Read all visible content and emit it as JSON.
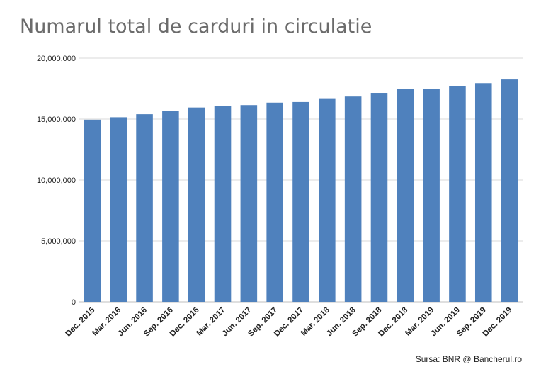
{
  "chart_data": {
    "type": "bar",
    "title": "Numarul total de carduri in circulatie",
    "source": "Sursa: BNR @  Bancherul.ro",
    "xlabel": "",
    "ylabel": "",
    "ylim": [
      0,
      20000000
    ],
    "yticks": [
      0,
      5000000,
      10000000,
      15000000,
      20000000
    ],
    "ytick_labels": [
      "0",
      "5,000,000",
      "10,000,000",
      "15,000,000",
      "20,000,000"
    ],
    "grid": true,
    "legend": "none",
    "bar_color": "#4f81bd",
    "categories": [
      "Dec. 2015",
      "Mar. 2016",
      "Jun. 2016",
      "Sep. 2016",
      "Dec. 2016",
      "Mar. 2017",
      "Jun. 2017",
      "Sep. 2017",
      "Dec. 2017",
      "Mar. 2018",
      "Jun. 2018",
      "Sep. 2018",
      "Dec. 2018",
      "Mar. 2019",
      "Jun. 2019",
      "Sep. 2019",
      "Dec. 2019"
    ],
    "values": [
      14950000,
      15150000,
      15400000,
      15650000,
      15950000,
      16050000,
      16150000,
      16350000,
      16400000,
      16650000,
      16850000,
      17150000,
      17450000,
      17500000,
      17700000,
      17950000,
      18250000
    ]
  }
}
